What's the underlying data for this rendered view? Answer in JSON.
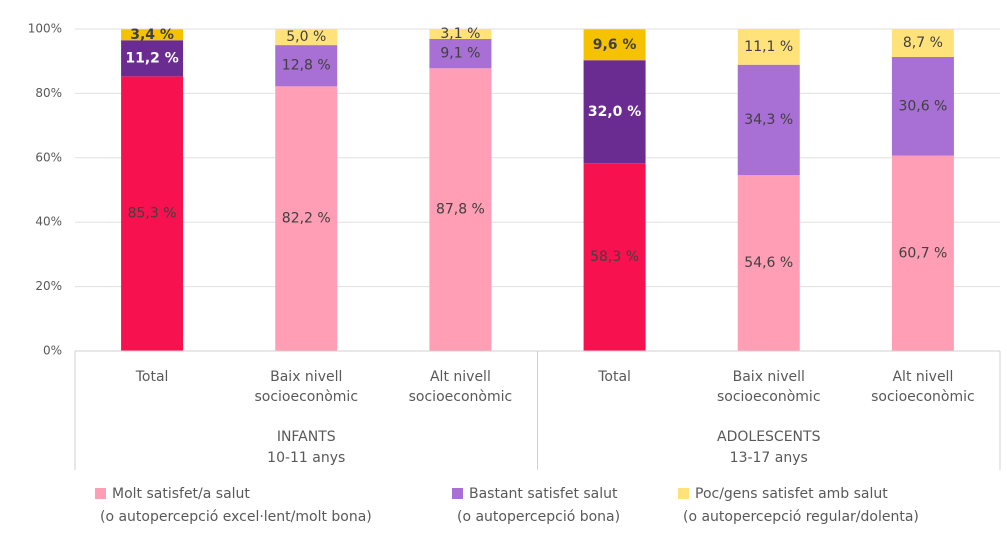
{
  "chart_data": {
    "type": "stacked_bar",
    "groups": [
      {
        "label": "INFANTS\n10-11 anys",
        "categories": [
          "Total",
          "Baix nivell\nsocioeconòmic",
          "Alt nivell\nsocioeconòmic"
        ]
      },
      {
        "label": "ADOLESCENTS\n13-17 anys",
        "categories": [
          "Total",
          "Baix nivell\nsocioeconòmic",
          "Alt nivell\nsocioeconòmic"
        ]
      }
    ],
    "series": [
      {
        "name": "Molt satisfet/a salut",
        "name_line2": "(o autopercepció excel·lent/molt bona)",
        "color": "#ff9eb5",
        "colors": [
          "#f7124f",
          "#ff9eb5",
          "#ff9eb5",
          "#f7124f",
          "#ff9eb5",
          "#ff9eb5"
        ],
        "values": [
          85.3,
          82.2,
          87.8,
          58.3,
          54.6,
          60.7
        ],
        "value_labels": [
          "85,3 %",
          "82,2 %",
          "87,8 %",
          "58,3 %",
          "54,6 %",
          "60,7 %"
        ]
      },
      {
        "name": "Bastant satisfet salut",
        "name_line2": "(o autopercepció bona)",
        "color": "#a86fd4",
        "colors": [
          "#6a2c91",
          "#a86fd4",
          "#a86fd4",
          "#6a2c91",
          "#a86fd4",
          "#a86fd4"
        ],
        "values": [
          11.2,
          12.8,
          9.1,
          32.0,
          34.3,
          30.6
        ],
        "value_labels": [
          "11,2 %",
          "12,8 %",
          "9,1 %",
          "32,0 %",
          "34,3 %",
          "30,6 %"
        ]
      },
      {
        "name": "Poc/gens satisfet amb salut",
        "name_line2": "(o autopercepció regular/dolenta)",
        "color": "#ffe27a",
        "colors": [
          "#f5c200",
          "#ffe27a",
          "#ffe27a",
          "#f5c200",
          "#ffe27a",
          "#ffe27a"
        ],
        "values": [
          3.4,
          5.0,
          3.1,
          9.6,
          11.1,
          8.7
        ],
        "value_labels": [
          "3,4 %",
          "5,0 %",
          "3,1 %",
          "9,6 %",
          "11,1 %",
          "8,7 %"
        ]
      }
    ],
    "ylim": [
      0,
      100
    ],
    "yticks": [
      {
        "value": 0,
        "label": "0%"
      },
      {
        "value": 20,
        "label": "20%"
      },
      {
        "value": 40,
        "label": "40%"
      },
      {
        "value": 60,
        "label": "60%"
      },
      {
        "value": 80,
        "label": "80%"
      },
      {
        "value": 100,
        "label": "100%"
      }
    ],
    "grid": true
  }
}
